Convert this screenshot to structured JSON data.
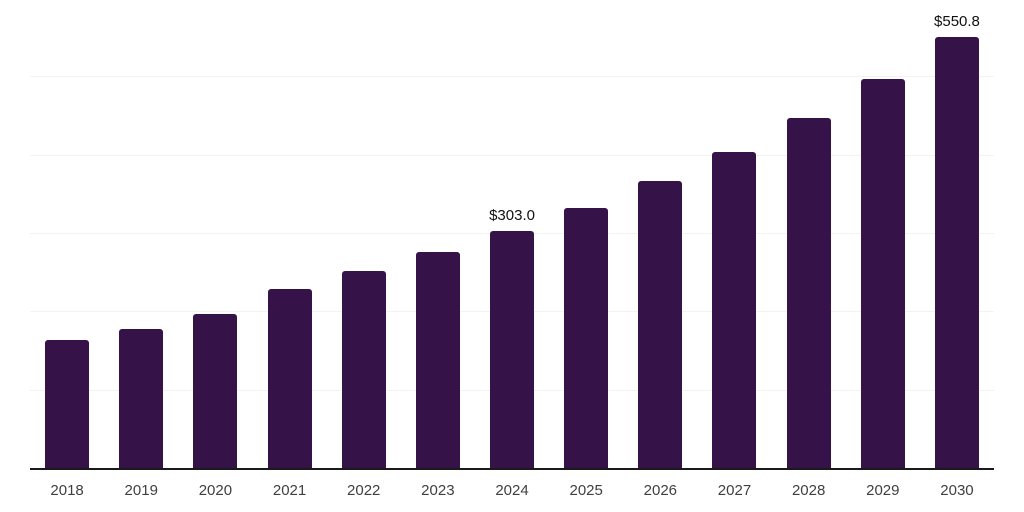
{
  "chart_data": {
    "type": "bar",
    "title": "",
    "xlabel": "",
    "ylabel": "",
    "categories": [
      "2018",
      "2019",
      "2020",
      "2021",
      "2022",
      "2023",
      "2024",
      "2025",
      "2026",
      "2027",
      "2028",
      "2029",
      "2030"
    ],
    "values": [
      164,
      177,
      197,
      229,
      252,
      276,
      303.0,
      332,
      367,
      404,
      447,
      496,
      550.8
    ],
    "data_labels": {
      "2024": "$303.0",
      "2030": "$550.8"
    },
    "ylim": [
      0,
      600
    ],
    "gridline_values": [
      100,
      200,
      300,
      400,
      500,
      600
    ],
    "grid": "horizontal",
    "legend": "none",
    "colors": {
      "bar": "#351349",
      "axis": "#1a1a1a",
      "gridline": "#f2f2f2",
      "tick_label": "#404040",
      "data_label": "#111111",
      "background": "#ffffff"
    }
  }
}
